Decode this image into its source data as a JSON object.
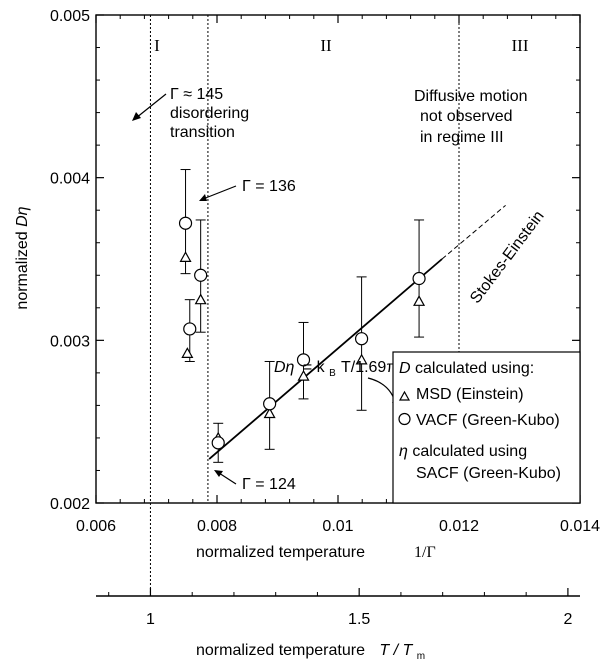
{
  "chart_data": {
    "type": "scatter",
    "x_axis_primary": {
      "label": "normalized temperature",
      "symbol": "1/Γ",
      "range": [
        0.006,
        0.014
      ],
      "ticks": [
        "0.006",
        "0.008",
        "0.01",
        "0.012",
        "0.014"
      ],
      "tick_values": [
        0.006,
        0.008,
        0.01,
        0.012,
        0.014
      ]
    },
    "x_axis_secondary": {
      "label": "normalized temperature",
      "symbol": "T / T",
      "symbol_sub": "m",
      "ticks": [
        "1",
        "1.5",
        "2"
      ],
      "tick_values": [
        1,
        1.5,
        2
      ],
      "tm_inverse_gamma": 0.0069
    },
    "y_axis": {
      "label": "normalized Dη",
      "range": [
        0.002,
        0.005
      ],
      "ticks": [
        "0.002",
        "0.003",
        "0.004",
        "0.005"
      ],
      "tick_values": [
        0.002,
        0.003,
        0.004,
        0.005
      ]
    },
    "regime_labels": [
      "I",
      "II",
      "III"
    ],
    "regime_boundaries": [
      0.0069,
      0.00785,
      0.012
    ],
    "series": [
      {
        "name": "MSD (Einstein)",
        "marker": "triangle",
        "points": [
          [
            0.00748,
            0.00351
          ],
          [
            0.00751,
            0.00292
          ],
          [
            0.00773,
            0.00325
          ],
          [
            0.00802,
            0.0024
          ],
          [
            0.00887,
            0.00255
          ],
          [
            0.00943,
            0.00278
          ],
          [
            0.01039,
            0.00288
          ],
          [
            0.01134,
            0.00324
          ]
        ]
      },
      {
        "name": "VACF (Green-Kubo)",
        "marker": "circle",
        "points": [
          [
            0.00748,
            0.00372
          ],
          [
            0.00755,
            0.00307
          ],
          [
            0.00773,
            0.0034
          ],
          [
            0.00802,
            0.00237
          ],
          [
            0.00887,
            0.00261
          ],
          [
            0.00943,
            0.00288
          ],
          [
            0.01039,
            0.00301
          ],
          [
            0.01134,
            0.00338
          ]
        ],
        "err_low": [
          0.00341,
          0.00287,
          0.00305,
          0.00225,
          0.00233,
          0.00264,
          0.00257,
          0.00302
        ],
        "err_high": [
          0.00405,
          0.00325,
          0.00374,
          0.00249,
          0.00287,
          0.00311,
          0.00339,
          0.00374
        ]
      }
    ],
    "fit_line": {
      "solid_from": [
        0.00787,
        0.00227
      ],
      "solid_to": [
        0.01172,
        0.0035
      ],
      "dashed_to": [
        0.01277,
        0.00383
      ],
      "label_lhs": "Dη",
      "label_rhs": "= k",
      "label_sub": "B",
      "label_tail": "T/1.69π",
      "rotated_label": "Stokes-Einstein"
    },
    "annotations": {
      "gamma145": "Γ ≈ 145",
      "gamma145_line2": "disordering",
      "gamma145_line3": "transition",
      "gamma136": "Γ = 136",
      "gamma124": "Γ = 124",
      "diffusive_line1": "Diffusive motion",
      "diffusive_line2": "not observed",
      "diffusive_line3": "in regime III"
    },
    "legend": {
      "placement": "bottom-right",
      "header": "D calculated using:",
      "header_symbol": "D",
      "entry1": "MSD (Einstein)",
      "entry2": "VACF (Green-Kubo)",
      "eta_line1": "η calculated using",
      "eta_symbol": "η",
      "eta_line2": "SACF (Green-Kubo)"
    }
  }
}
